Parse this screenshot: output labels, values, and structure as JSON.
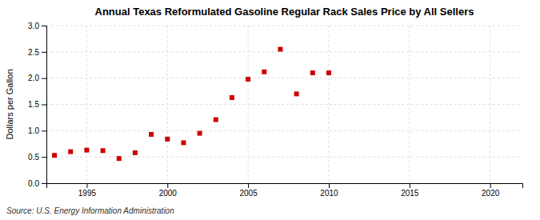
{
  "chart_data": {
    "type": "scatter",
    "title": "Annual Texas Reformulated Gasoline Regular Rack Sales Price by All Sellers",
    "ylabel": "Dollars per Gallon",
    "annotations": [
      "Source: U.S. Energy Information Administration"
    ],
    "x": [
      1993,
      1994,
      1995,
      1996,
      1997,
      1998,
      1999,
      2000,
      2001,
      2002,
      2003,
      2004,
      2005,
      2006,
      2007,
      2008,
      2009,
      2010
    ],
    "values": [
      0.53,
      0.6,
      0.63,
      0.62,
      0.47,
      0.58,
      0.93,
      0.84,
      0.77,
      0.95,
      1.21,
      1.63,
      1.98,
      2.12,
      2.55,
      1.7,
      2.1,
      2.1
    ],
    "color": "#cc0000",
    "marker": "square",
    "xlim": [
      1992.5,
      2022
    ],
    "ylim": [
      0.0,
      3.0
    ],
    "xticks": [
      1995,
      2000,
      2005,
      2010,
      2015,
      2020
    ],
    "yticks": [
      {
        "value": 0,
        "label": "0.0"
      },
      0.5,
      {
        "value": 1,
        "label": "1.0"
      },
      1.5,
      {
        "value": 2,
        "label": "2.0"
      },
      2.5,
      {
        "value": 3,
        "label": "3.0"
      }
    ],
    "grid": true
  }
}
